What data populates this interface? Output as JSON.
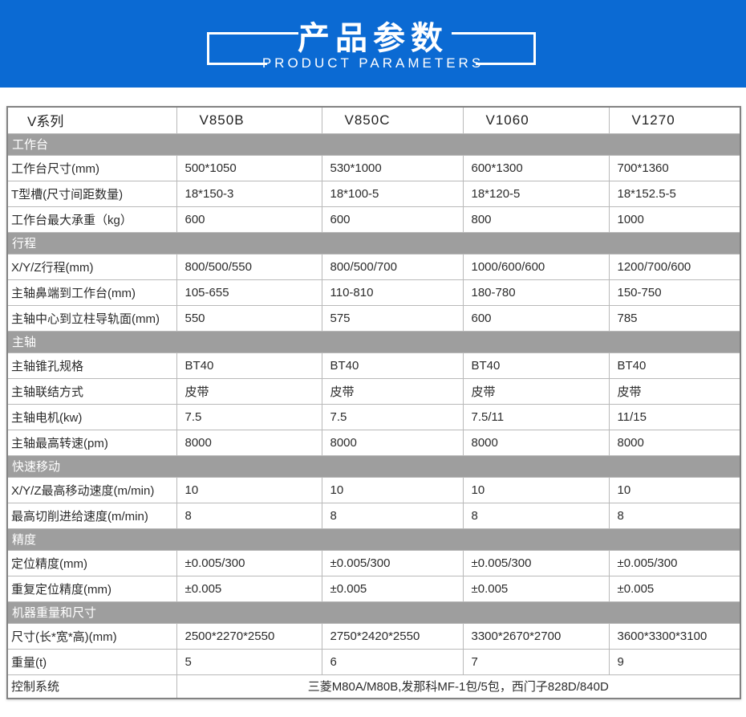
{
  "banner": {
    "title": "产品参数",
    "subtitle": "PRODUCT PARAMETERS"
  },
  "colors": {
    "banner_bg": "#0b6ad3",
    "banner_text": "#ffffff",
    "section_bar_bg": "#9e9e9e",
    "section_bar_text": "#ffffff",
    "table_outer_border": "#828282",
    "table_grid_line": "#b9b9b9",
    "text_color": "#2b2b2b"
  },
  "table": {
    "header": {
      "series_label": "V系列",
      "models": [
        "V850B",
        "V850C",
        "V1060",
        "V1270"
      ]
    },
    "sections": [
      {
        "title": "工作台",
        "rows": [
          {
            "label": "工作台尺寸(mm)",
            "values": [
              "500*1050",
              "530*1000",
              "600*1300",
              "700*1360"
            ]
          },
          {
            "label": "T型槽(尺寸间距数量)",
            "values": [
              "18*150-3",
              "18*100-5",
              "18*120-5",
              "18*152.5-5"
            ]
          },
          {
            "label": "工作台最大承重（kg）",
            "values": [
              "600",
              "600",
              "800",
              "1000"
            ]
          }
        ]
      },
      {
        "title": "行程",
        "rows": [
          {
            "label": "X/Y/Z行程(mm)",
            "values": [
              "800/500/550",
              "800/500/700",
              "1000/600/600",
              "1200/700/600"
            ]
          },
          {
            "label": "主轴鼻端到工作台(mm)",
            "values": [
              "105-655",
              "110-810",
              "180-780",
              "150-750"
            ]
          },
          {
            "label": "主轴中心到立柱导轨面(mm)",
            "values": [
              "550",
              "575",
              "600",
              "785"
            ]
          }
        ]
      },
      {
        "title": "主轴",
        "rows": [
          {
            "label": "主轴锥孔规格",
            "values": [
              "BT40",
              "BT40",
              "BT40",
              "BT40"
            ]
          },
          {
            "label": "主轴联结方式",
            "values": [
              "皮带",
              "皮带",
              "皮带",
              "皮带"
            ]
          },
          {
            "label": "主轴电机(kw)",
            "values": [
              "7.5",
              "7.5",
              "7.5/11",
              "11/15"
            ]
          },
          {
            "label": "主轴最高转速(pm)",
            "values": [
              "8000",
              "8000",
              "8000",
              "8000"
            ]
          }
        ]
      },
      {
        "title": "快速移动",
        "rows": [
          {
            "label": "X/Y/Z最高移动速度(m/min)",
            "values": [
              "10",
              "10",
              "10",
              "10"
            ]
          },
          {
            "label": "最高切削进给速度(m/min)",
            "values": [
              "8",
              "8",
              "8",
              "8"
            ]
          }
        ]
      },
      {
        "title": "精度",
        "rows": [
          {
            "label": "定位精度(mm)",
            "values": [
              "±0.005/300",
              "±0.005/300",
              "±0.005/300",
              "±0.005/300"
            ]
          },
          {
            "label": "重复定位精度(mm)",
            "values": [
              "±0.005",
              "±0.005",
              "±0.005",
              "±0.005"
            ]
          }
        ]
      },
      {
        "title": "机器重量和尺寸",
        "rows": [
          {
            "label": "尺寸(长*宽*高)(mm)",
            "values": [
              "2500*2270*2550",
              "2750*2420*2550",
              "3300*2670*2700",
              "3600*3300*3100"
            ]
          },
          {
            "label": "重量(t)",
            "values": [
              "5",
              "6",
              "7",
              "9"
            ]
          }
        ]
      }
    ],
    "footer_row": {
      "label": "控制系统",
      "value": "三菱M80A/M80B,发那科MF-1包/5包，西门子828D/840D"
    }
  }
}
